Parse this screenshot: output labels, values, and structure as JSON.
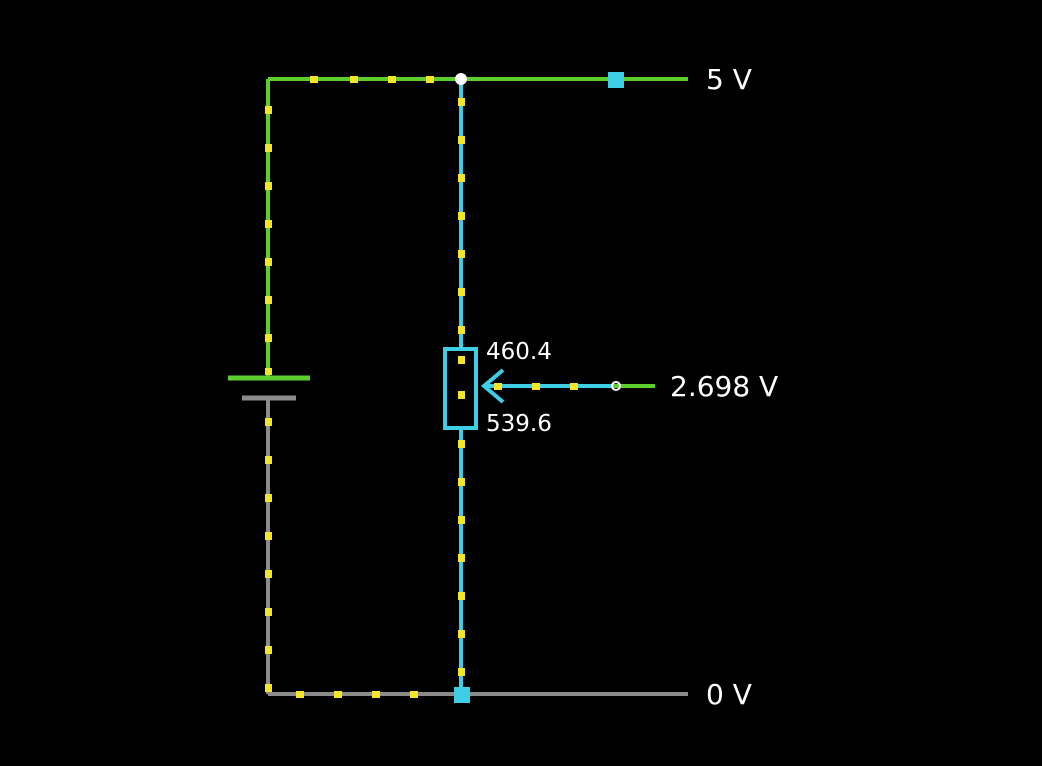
{
  "labels": {
    "top_rail": "5 V",
    "bottom_rail": "0 V",
    "wiper_output": "2.698 V",
    "pot_upper_resistance": "460.4",
    "pot_lower_resistance": "539.6"
  },
  "colors": {
    "background": "#000000",
    "wire_high": "#5ccf2e",
    "wire_pot": "#3ecfe6",
    "wire_ground": "#8c8c8c",
    "current_dot": "#f2e52a",
    "label_text": "#ffffff"
  },
  "components": {
    "battery": "battery-icon",
    "potentiometer": "potentiometer-icon",
    "wiper": "wiper-arrow-icon"
  }
}
